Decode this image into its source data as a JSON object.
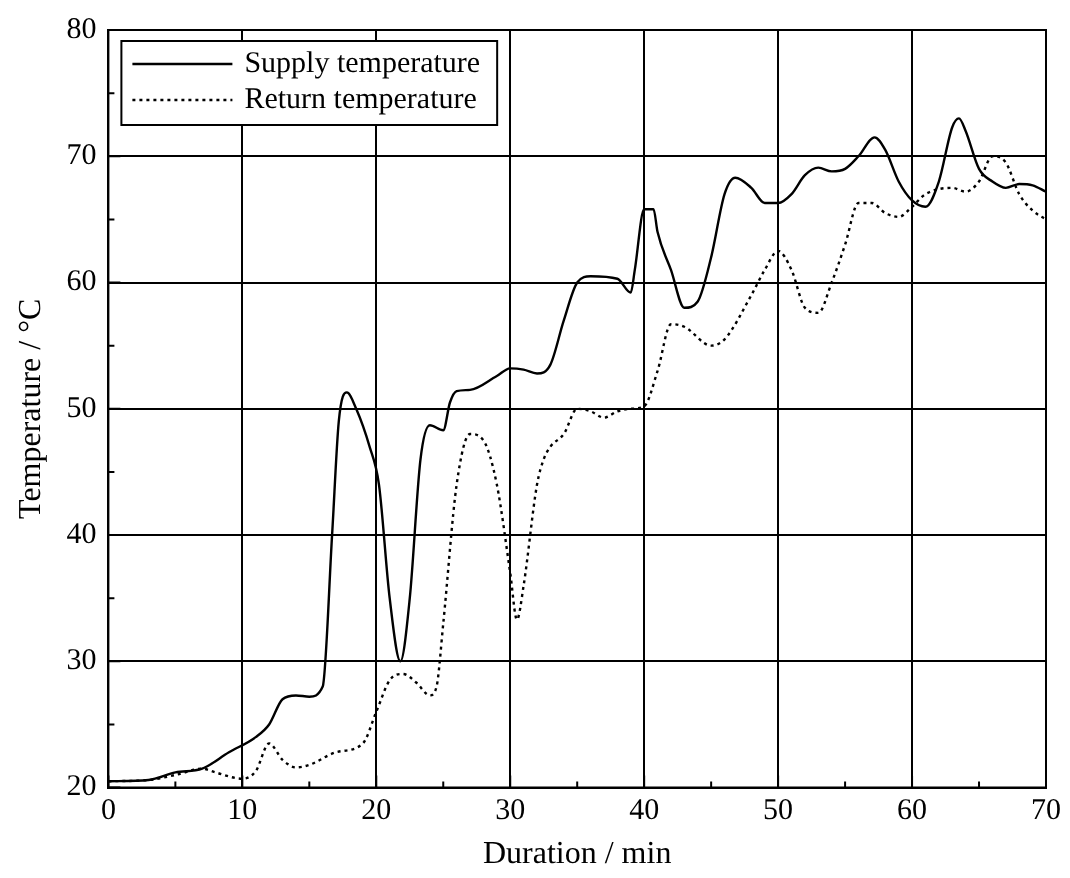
{
  "chart_data": {
    "type": "line",
    "xlabel": "Duration / min",
    "ylabel": "Temperature / °C",
    "xlim": [
      0,
      70
    ],
    "ylim": [
      20,
      80
    ],
    "xticks": [
      0,
      10,
      20,
      30,
      40,
      50,
      60,
      70
    ],
    "yticks": [
      20,
      30,
      40,
      50,
      60,
      70,
      80
    ],
    "grid": true,
    "legend": "top left",
    "marker": "none",
    "series": [
      {
        "name": "Supply temperature",
        "color": "#000000",
        "line_style": "solid",
        "x": [
          0,
          3,
          5,
          7,
          9,
          11,
          12,
          13,
          14,
          15,
          16,
          16.7,
          17.2,
          17.8,
          18.5,
          19.5,
          20.2,
          21,
          21.8,
          22.5,
          23.3,
          24,
          25,
          25.5,
          26,
          27,
          29,
          30,
          31,
          32,
          33,
          34,
          35,
          36,
          38,
          39,
          39.3,
          40,
          40.7,
          41,
          42,
          43,
          44,
          45,
          46,
          46.8,
          48,
          49,
          50,
          51,
          52,
          53,
          54,
          55,
          56,
          57.2,
          58,
          59,
          60,
          61,
          62,
          63,
          63.5,
          64,
          65,
          66,
          67,
          68,
          69,
          70
        ],
        "values": [
          20.5,
          20.6,
          21.2,
          21.5,
          22.8,
          24,
          25,
          27,
          27.3,
          27.2,
          28,
          40,
          49,
          51.3,
          50,
          47,
          44,
          35,
          30,
          35,
          46,
          48.7,
          48.3,
          50.5,
          51.4,
          51.5,
          52.6,
          53.2,
          53.1,
          52.8,
          53.5,
          57,
          60,
          60.5,
          60.3,
          59.2,
          61,
          65.8,
          65.8,
          64,
          61,
          58,
          58.5,
          62,
          67,
          68.3,
          67.5,
          66.3,
          66.3,
          67,
          68.5,
          69.1,
          68.8,
          69,
          70,
          71.5,
          70.5,
          68,
          66.5,
          66,
          68,
          72.3,
          73,
          72,
          69,
          68,
          67.5,
          67.8,
          67.7,
          67.2
        ]
      },
      {
        "name": "Return temperature",
        "color": "#000000",
        "line_style": "dotted",
        "x": [
          0,
          3,
          5,
          7,
          8,
          10,
          11,
          12,
          13,
          14,
          15,
          17,
          19,
          20,
          21,
          22,
          23,
          24,
          24.5,
          25,
          26,
          27,
          28,
          29,
          30,
          30.5,
          31,
          32,
          32.5,
          33,
          34,
          35,
          36,
          37,
          38,
          39,
          40,
          41,
          42,
          43,
          45,
          46,
          48,
          49,
          50,
          51,
          52,
          53,
          54,
          55,
          56,
          57,
          58,
          59,
          60,
          61,
          63,
          64,
          65,
          66,
          67,
          68,
          69,
          70
        ],
        "values": [
          20.5,
          20.6,
          21,
          21.5,
          21.2,
          20.7,
          21.3,
          23.5,
          22.2,
          21.6,
          21.8,
          22.8,
          23.5,
          26,
          28.5,
          29,
          28.3,
          27.3,
          28,
          33,
          44,
          48,
          47.5,
          44,
          37,
          33.3,
          36,
          44,
          46,
          47,
          48,
          50,
          49.8,
          49.3,
          49.8,
          50,
          50.2,
          53,
          56.7,
          56.5,
          55,
          55.5,
          59,
          61,
          62.5,
          61,
          58,
          57.6,
          60,
          63,
          66.3,
          66.3,
          65.5,
          65.2,
          66,
          67,
          67.5,
          67.2,
          68,
          70,
          69.5,
          67,
          65.7,
          65
        ]
      }
    ]
  }
}
